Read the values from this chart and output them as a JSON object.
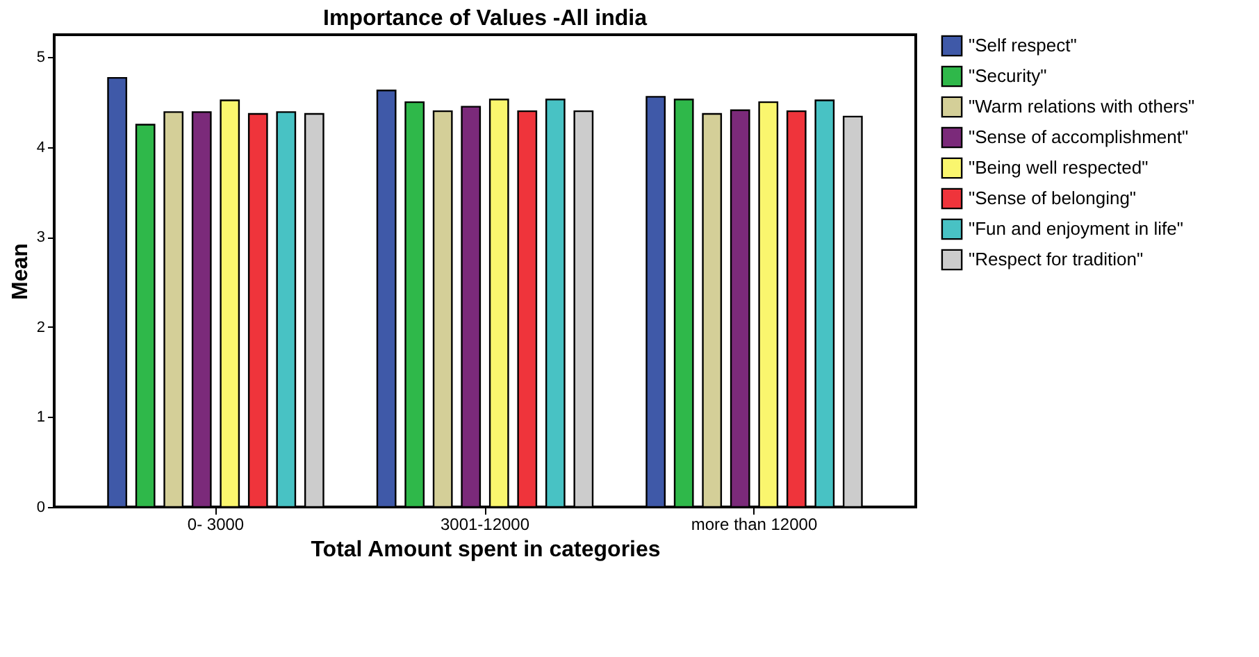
{
  "chart_data": {
    "type": "bar",
    "title": "Importance of Values -All india",
    "xlabel": "Total Amount spent in categories",
    "ylabel": "Mean",
    "categories": [
      "0- 3000",
      "3001-12000",
      "more than 12000"
    ],
    "series": [
      {
        "name": "\"Self respect\"",
        "color": "#3f59a8",
        "values": [
          4.77,
          4.63,
          4.56
        ]
      },
      {
        "name": "\"Security\"",
        "color": "#2fb84a",
        "values": [
          4.25,
          4.5,
          4.53
        ]
      },
      {
        "name": "\"Warm relations with others\"",
        "color": "#d4cf98",
        "values": [
          4.39,
          4.4,
          4.37
        ]
      },
      {
        "name": "\"Sense of accomplishment\"",
        "color": "#7b2a7a",
        "values": [
          4.39,
          4.45,
          4.41
        ]
      },
      {
        "name": "\"Being well respected\"",
        "color": "#faf66e",
        "values": [
          4.52,
          4.53,
          4.5
        ]
      },
      {
        "name": "\"Sense of belonging\"",
        "color": "#ef343b",
        "values": [
          4.37,
          4.4,
          4.4
        ]
      },
      {
        "name": "\"Fun and enjoyment in life\"",
        "color": "#48c2c4",
        "values": [
          4.39,
          4.53,
          4.52
        ]
      },
      {
        "name": "\"Respect for tradition\"",
        "color": "#cccccc",
        "values": [
          4.37,
          4.4,
          4.34
        ]
      }
    ],
    "ylim": [
      0,
      5.25
    ],
    "yticks": [
      0,
      1,
      2,
      3,
      4,
      5
    ],
    "grid": false,
    "legend": "right"
  }
}
